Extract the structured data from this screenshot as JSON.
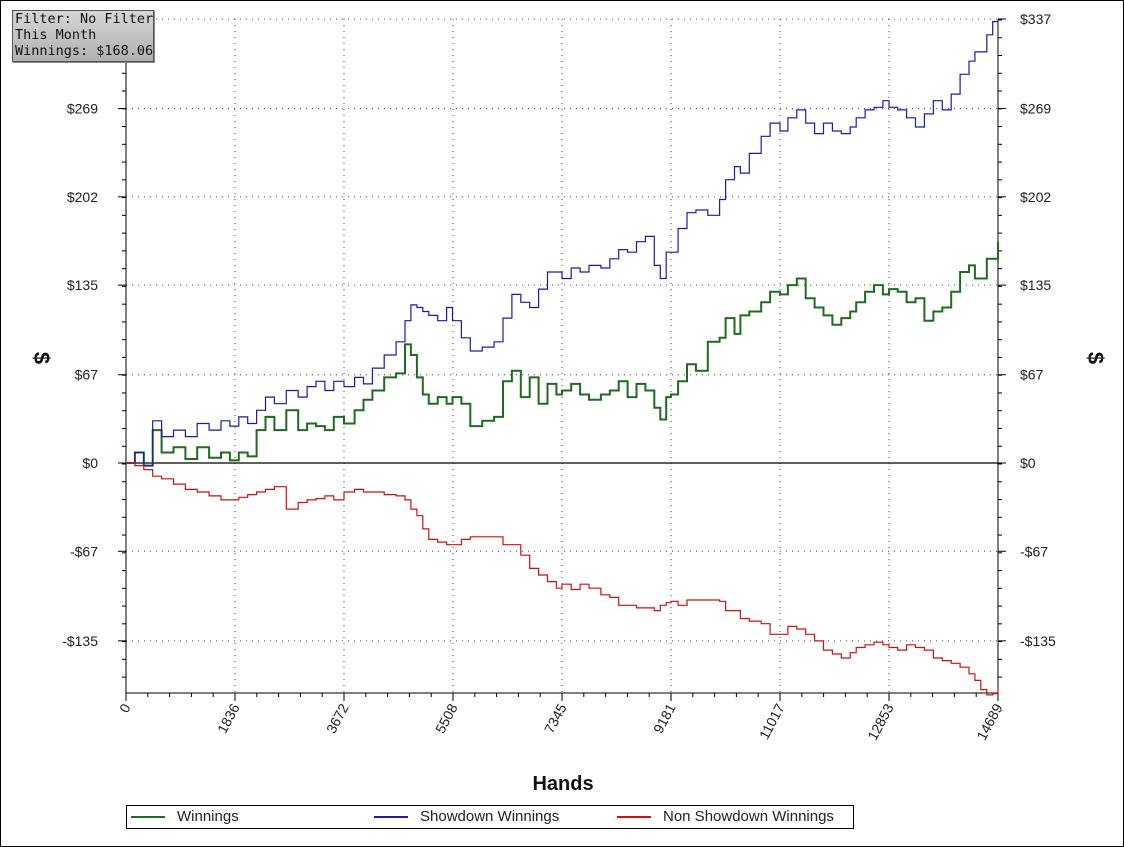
{
  "info_box": {
    "filter": "Filter: No Filter",
    "period": "This Month",
    "winnings": "Winnings: $168.06"
  },
  "chart_data": {
    "type": "line",
    "title": "",
    "xlabel": "Hands",
    "ylabel": "$",
    "xlim": [
      0,
      14689
    ],
    "ylim": [
      -176,
      337
    ],
    "x_ticks": [
      0,
      1836,
      3672,
      5508,
      7345,
      9181,
      11017,
      12853,
      14689
    ],
    "y_ticks": [
      337,
      269,
      202,
      135,
      67,
      0,
      -67,
      -135
    ],
    "y_tick_labels": [
      "$337",
      "$269",
      "$202",
      "$135",
      "$67",
      "$0",
      "-$67",
      "-$135"
    ],
    "grid": true,
    "legend_position": "bottom",
    "series": [
      {
        "name": "Winnings",
        "color": "#1f6b1f",
        "points": [
          [
            0,
            0
          ],
          [
            150,
            8
          ],
          [
            300,
            -2
          ],
          [
            450,
            25
          ],
          [
            600,
            8
          ],
          [
            800,
            12
          ],
          [
            1000,
            3
          ],
          [
            1200,
            12
          ],
          [
            1400,
            4
          ],
          [
            1600,
            8
          ],
          [
            1750,
            2
          ],
          [
            1900,
            8
          ],
          [
            2050,
            5
          ],
          [
            2200,
            25
          ],
          [
            2350,
            35
          ],
          [
            2500,
            25
          ],
          [
            2700,
            40
          ],
          [
            2900,
            25
          ],
          [
            3050,
            30
          ],
          [
            3200,
            28
          ],
          [
            3350,
            25
          ],
          [
            3500,
            35
          ],
          [
            3672,
            30
          ],
          [
            3850,
            40
          ],
          [
            4000,
            48
          ],
          [
            4150,
            55
          ],
          [
            4350,
            65
          ],
          [
            4550,
            68
          ],
          [
            4700,
            90
          ],
          [
            4800,
            82
          ],
          [
            4900,
            65
          ],
          [
            5000,
            52
          ],
          [
            5100,
            45
          ],
          [
            5250,
            50
          ],
          [
            5400,
            45
          ],
          [
            5500,
            50
          ],
          [
            5650,
            45
          ],
          [
            5800,
            28
          ],
          [
            6000,
            32
          ],
          [
            6200,
            35
          ],
          [
            6350,
            62
          ],
          [
            6500,
            70
          ],
          [
            6650,
            50
          ],
          [
            6800,
            65
          ],
          [
            6950,
            45
          ],
          [
            7100,
            60
          ],
          [
            7250,
            52
          ],
          [
            7345,
            55
          ],
          [
            7500,
            60
          ],
          [
            7650,
            52
          ],
          [
            7800,
            48
          ],
          [
            8000,
            52
          ],
          [
            8150,
            55
          ],
          [
            8300,
            62
          ],
          [
            8450,
            50
          ],
          [
            8600,
            60
          ],
          [
            8750,
            55
          ],
          [
            8900,
            42
          ],
          [
            9000,
            33
          ],
          [
            9100,
            50
          ],
          [
            9181,
            52
          ],
          [
            9300,
            62
          ],
          [
            9450,
            75
          ],
          [
            9600,
            70
          ],
          [
            9800,
            92
          ],
          [
            10000,
            95
          ],
          [
            10100,
            110
          ],
          [
            10250,
            98
          ],
          [
            10350,
            112
          ],
          [
            10500,
            115
          ],
          [
            10700,
            122
          ],
          [
            10850,
            130
          ],
          [
            11017,
            128
          ],
          [
            11150,
            135
          ],
          [
            11300,
            140
          ],
          [
            11450,
            125
          ],
          [
            11600,
            118
          ],
          [
            11750,
            112
          ],
          [
            11900,
            105
          ],
          [
            12050,
            110
          ],
          [
            12200,
            115
          ],
          [
            12300,
            122
          ],
          [
            12450,
            130
          ],
          [
            12600,
            135
          ],
          [
            12750,
            128
          ],
          [
            12853,
            132
          ],
          [
            13000,
            130
          ],
          [
            13150,
            122
          ],
          [
            13300,
            125
          ],
          [
            13450,
            108
          ],
          [
            13600,
            115
          ],
          [
            13750,
            118
          ],
          [
            13900,
            130
          ],
          [
            14050,
            145
          ],
          [
            14200,
            150
          ],
          [
            14300,
            140
          ],
          [
            14400,
            140
          ],
          [
            14500,
            155
          ],
          [
            14600,
            155
          ],
          [
            14689,
            168
          ]
        ]
      },
      {
        "name": "Showdown Winnings",
        "color": "#1a1ab0",
        "points": [
          [
            0,
            0
          ],
          [
            150,
            8
          ],
          [
            300,
            -2
          ],
          [
            450,
            32
          ],
          [
            600,
            20
          ],
          [
            800,
            25
          ],
          [
            1000,
            20
          ],
          [
            1200,
            30
          ],
          [
            1400,
            25
          ],
          [
            1600,
            32
          ],
          [
            1750,
            28
          ],
          [
            1900,
            35
          ],
          [
            2050,
            30
          ],
          [
            2200,
            40
          ],
          [
            2350,
            50
          ],
          [
            2500,
            45
          ],
          [
            2700,
            55
          ],
          [
            2900,
            50
          ],
          [
            3050,
            58
          ],
          [
            3200,
            62
          ],
          [
            3350,
            55
          ],
          [
            3500,
            62
          ],
          [
            3672,
            58
          ],
          [
            3850,
            65
          ],
          [
            4000,
            60
          ],
          [
            4150,
            72
          ],
          [
            4350,
            82
          ],
          [
            4550,
            92
          ],
          [
            4700,
            108
          ],
          [
            4800,
            120
          ],
          [
            4900,
            118
          ],
          [
            5000,
            115
          ],
          [
            5100,
            112
          ],
          [
            5250,
            108
          ],
          [
            5400,
            118
          ],
          [
            5500,
            108
          ],
          [
            5650,
            95
          ],
          [
            5800,
            85
          ],
          [
            6000,
            88
          ],
          [
            6200,
            92
          ],
          [
            6350,
            110
          ],
          [
            6500,
            128
          ],
          [
            6650,
            122
          ],
          [
            6800,
            118
          ],
          [
            6950,
            132
          ],
          [
            7100,
            145
          ],
          [
            7250,
            145
          ],
          [
            7345,
            140
          ],
          [
            7500,
            148
          ],
          [
            7650,
            145
          ],
          [
            7800,
            150
          ],
          [
            8000,
            148
          ],
          [
            8150,
            155
          ],
          [
            8300,
            162
          ],
          [
            8450,
            160
          ],
          [
            8600,
            168
          ],
          [
            8750,
            172
          ],
          [
            8900,
            150
          ],
          [
            9000,
            140
          ],
          [
            9100,
            160
          ],
          [
            9181,
            160
          ],
          [
            9300,
            178
          ],
          [
            9450,
            190
          ],
          [
            9600,
            192
          ],
          [
            9800,
            188
          ],
          [
            10000,
            200
          ],
          [
            10100,
            215
          ],
          [
            10250,
            225
          ],
          [
            10350,
            220
          ],
          [
            10500,
            235
          ],
          [
            10700,
            248
          ],
          [
            10850,
            258
          ],
          [
            11017,
            252
          ],
          [
            11150,
            262
          ],
          [
            11300,
            268
          ],
          [
            11450,
            258
          ],
          [
            11600,
            250
          ],
          [
            11750,
            258
          ],
          [
            11900,
            252
          ],
          [
            12050,
            250
          ],
          [
            12200,
            255
          ],
          [
            12300,
            262
          ],
          [
            12450,
            268
          ],
          [
            12600,
            270
          ],
          [
            12750,
            275
          ],
          [
            12853,
            270
          ],
          [
            13000,
            268
          ],
          [
            13150,
            262
          ],
          [
            13300,
            255
          ],
          [
            13450,
            265
          ],
          [
            13600,
            275
          ],
          [
            13750,
            268
          ],
          [
            13900,
            280
          ],
          [
            14050,
            295
          ],
          [
            14200,
            305
          ],
          [
            14300,
            312
          ],
          [
            14400,
            312
          ],
          [
            14500,
            325
          ],
          [
            14600,
            335
          ],
          [
            14689,
            337
          ]
        ]
      },
      {
        "name": "Non Showdown Winnings",
        "color": "#cc1111",
        "points": [
          [
            0,
            0
          ],
          [
            150,
            -2
          ],
          [
            300,
            -5
          ],
          [
            450,
            -10
          ],
          [
            600,
            -12
          ],
          [
            800,
            -16
          ],
          [
            1000,
            -20
          ],
          [
            1200,
            -22
          ],
          [
            1400,
            -25
          ],
          [
            1600,
            -28
          ],
          [
            1750,
            -28
          ],
          [
            1900,
            -26
          ],
          [
            2050,
            -24
          ],
          [
            2200,
            -22
          ],
          [
            2350,
            -20
          ],
          [
            2500,
            -18
          ],
          [
            2700,
            -35
          ],
          [
            2900,
            -30
          ],
          [
            3050,
            -28
          ],
          [
            3200,
            -27
          ],
          [
            3350,
            -25
          ],
          [
            3500,
            -28
          ],
          [
            3672,
            -22
          ],
          [
            3850,
            -20
          ],
          [
            4000,
            -22
          ],
          [
            4150,
            -22
          ],
          [
            4350,
            -24
          ],
          [
            4550,
            -25
          ],
          [
            4700,
            -28
          ],
          [
            4800,
            -35
          ],
          [
            4900,
            -40
          ],
          [
            5000,
            -50
          ],
          [
            5100,
            -58
          ],
          [
            5250,
            -60
          ],
          [
            5400,
            -62
          ],
          [
            5500,
            -62
          ],
          [
            5650,
            -58
          ],
          [
            5800,
            -56
          ],
          [
            6000,
            -56
          ],
          [
            6200,
            -56
          ],
          [
            6350,
            -62
          ],
          [
            6500,
            -62
          ],
          [
            6650,
            -70
          ],
          [
            6800,
            -80
          ],
          [
            6950,
            -85
          ],
          [
            7100,
            -90
          ],
          [
            7250,
            -95
          ],
          [
            7345,
            -92
          ],
          [
            7500,
            -96
          ],
          [
            7650,
            -92
          ],
          [
            7800,
            -95
          ],
          [
            8000,
            -100
          ],
          [
            8150,
            -102
          ],
          [
            8300,
            -108
          ],
          [
            8450,
            -108
          ],
          [
            8600,
            -110
          ],
          [
            8750,
            -110
          ],
          [
            8900,
            -112
          ],
          [
            9000,
            -108
          ],
          [
            9100,
            -106
          ],
          [
            9181,
            -105
          ],
          [
            9300,
            -108
          ],
          [
            9450,
            -104
          ],
          [
            9600,
            -104
          ],
          [
            9800,
            -104
          ],
          [
            10000,
            -105
          ],
          [
            10100,
            -112
          ],
          [
            10250,
            -112
          ],
          [
            10350,
            -118
          ],
          [
            10500,
            -120
          ],
          [
            10700,
            -122
          ],
          [
            10850,
            -130
          ],
          [
            11017,
            -130
          ],
          [
            11150,
            -124
          ],
          [
            11300,
            -126
          ],
          [
            11450,
            -130
          ],
          [
            11600,
            -135
          ],
          [
            11750,
            -142
          ],
          [
            11900,
            -145
          ],
          [
            12050,
            -148
          ],
          [
            12200,
            -144
          ],
          [
            12300,
            -140
          ],
          [
            12450,
            -138
          ],
          [
            12600,
            -136
          ],
          [
            12750,
            -138
          ],
          [
            12853,
            -140
          ],
          [
            13000,
            -142
          ],
          [
            13150,
            -138
          ],
          [
            13300,
            -140
          ],
          [
            13450,
            -142
          ],
          [
            13600,
            -148
          ],
          [
            13750,
            -150
          ],
          [
            13900,
            -152
          ],
          [
            14050,
            -155
          ],
          [
            14200,
            -160
          ],
          [
            14300,
            -165
          ],
          [
            14400,
            -172
          ],
          [
            14500,
            -176
          ],
          [
            14600,
            -175
          ],
          [
            14689,
            -170
          ]
        ]
      }
    ]
  }
}
